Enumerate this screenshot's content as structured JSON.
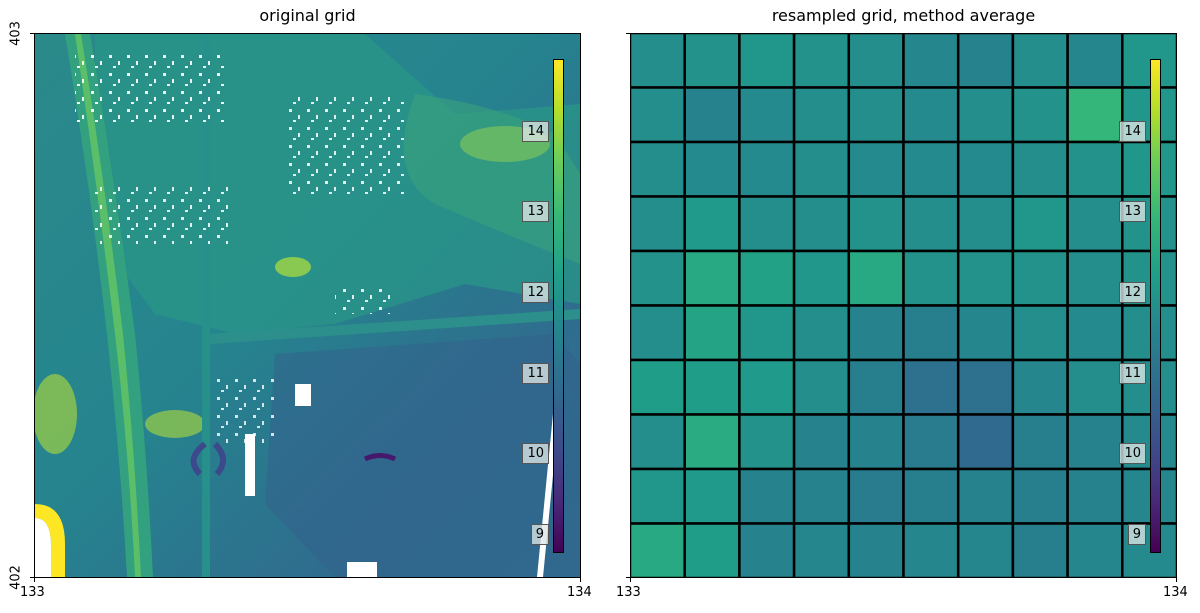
{
  "panels": [
    {
      "title": "original grid",
      "x_ticks": [
        "133",
        "134"
      ],
      "y_ticks": [
        "403",
        "402"
      ]
    },
    {
      "title": "resampled grid, method average",
      "x_ticks": [
        "133",
        "134"
      ]
    }
  ],
  "colorbar": {
    "colormap": "viridis",
    "range": [
      8.8,
      14.9
    ],
    "tick_labels": [
      "14",
      "13",
      "12",
      "11",
      "10",
      "9"
    ],
    "tick_values": [
      14,
      13,
      12,
      11,
      10,
      9
    ]
  },
  "chart_data": [
    {
      "type": "heatmap",
      "title": "original grid",
      "x_range": [
        133,
        134
      ],
      "y_range": [
        402,
        403
      ],
      "colormap": "viridis"
    },
    {
      "type": "heatmap",
      "title": "resampled grid, method average",
      "x_range": [
        133,
        134
      ],
      "y_range": [
        402,
        403
      ],
      "colormap": "viridis",
      "grid_shape": [
        10,
        10
      ],
      "values": [
        [
          11.8,
          11.9,
          12.0,
          11.9,
          11.8,
          11.6,
          11.5,
          11.8,
          11.6,
          12.0
        ],
        [
          11.8,
          11.5,
          11.7,
          11.8,
          11.8,
          11.7,
          11.8,
          11.9,
          12.9,
          12.0
        ],
        [
          11.8,
          11.7,
          11.7,
          11.8,
          11.7,
          11.7,
          11.7,
          11.8,
          11.9,
          12.0
        ],
        [
          11.8,
          12.1,
          11.8,
          11.8,
          11.9,
          11.8,
          11.8,
          12.0,
          11.8,
          11.9
        ],
        [
          11.9,
          12.5,
          12.3,
          12.0,
          12.5,
          11.9,
          11.9,
          11.9,
          11.8,
          11.9
        ],
        [
          11.8,
          12.4,
          12.0,
          11.8,
          11.5,
          11.4,
          11.6,
          11.8,
          11.7,
          11.8
        ],
        [
          12.2,
          12.2,
          12.1,
          11.8,
          11.4,
          11.0,
          11.0,
          11.6,
          11.8,
          11.8
        ],
        [
          11.8,
          12.6,
          11.9,
          11.5,
          11.5,
          11.3,
          10.8,
          11.4,
          11.5,
          11.7
        ],
        [
          12.0,
          12.1,
          11.5,
          11.5,
          11.3,
          11.4,
          11.5,
          11.4,
          11.5,
          11.6
        ],
        [
          12.5,
          12.2,
          11.5,
          11.6,
          11.5,
          11.6,
          11.6,
          11.4,
          11.6,
          11.7
        ]
      ]
    }
  ]
}
